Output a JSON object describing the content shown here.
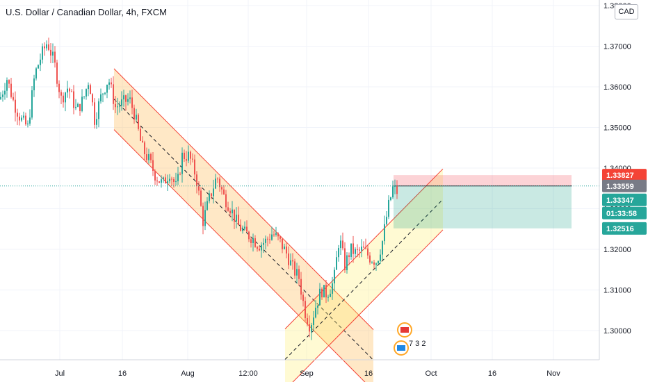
{
  "currency_button": "CAD",
  "colors": {
    "up": "#26a69a",
    "down": "#ef5350",
    "channel_line": "#f44336",
    "channel_fill_orange": "#ffb74d",
    "channel_fill_yellow": "#fff176",
    "last_price": "#26a69a",
    "stop": "#f44336",
    "target": "#26a69a",
    "current_label": "#787b86"
  },
  "chart_data": {
    "type": "candlestick",
    "title": "U.S. Dollar / Canadian Dollar, 4h, FXCM",
    "xlabel": "",
    "ylabel": "",
    "ylim": [
      1.2925,
      1.3805
    ],
    "y_ticks": [
      "1.30000",
      "1.31000",
      "1.32000",
      "1.33000",
      "1.34000",
      "1.35000",
      "1.36000",
      "1.37000",
      "1.38000"
    ],
    "x_ticks": [
      "Jul",
      "16",
      "Aug",
      "12:00",
      "Sep",
      "16",
      "Oct",
      "16",
      "Nov"
    ],
    "price_labels": [
      {
        "name": "stop-loss",
        "value": "1.33827"
      },
      {
        "name": "current-price",
        "value": "1.33559"
      },
      {
        "name": "last-close",
        "value": "1.33347"
      },
      {
        "name": "bar-countdown",
        "value": "01:33:58"
      },
      {
        "name": "take-profit",
        "value": "1.32516"
      }
    ],
    "bars_text": "Jul 1.362; Jul 1.358; 16 1.359; Aug 1.338; 12:00 1.325; Sep 1.302; Sep 1.310; 16 1.318; 16 1.334",
    "anchors": [
      [
        0,
        1.357
      ],
      [
        10,
        1.362
      ],
      [
        20,
        1.356
      ],
      [
        30,
        1.352
      ],
      [
        40,
        1.35
      ],
      [
        50,
        1.363
      ],
      [
        60,
        1.368
      ],
      [
        68,
        1.371
      ],
      [
        78,
        1.366
      ],
      [
        88,
        1.357
      ],
      [
        98,
        1.36
      ],
      [
        110,
        1.354
      ],
      [
        120,
        1.357
      ],
      [
        128,
        1.362
      ],
      [
        136,
        1.352
      ],
      [
        146,
        1.358
      ],
      [
        156,
        1.362
      ],
      [
        166,
        1.355
      ],
      [
        176,
        1.356
      ],
      [
        186,
        1.357
      ],
      [
        194,
        1.353
      ],
      [
        204,
        1.345
      ],
      [
        214,
        1.342
      ],
      [
        224,
        1.338
      ],
      [
        234,
        1.336
      ],
      [
        244,
        1.339
      ],
      [
        254,
        1.335
      ],
      [
        262,
        1.343
      ],
      [
        272,
        1.343
      ],
      [
        282,
        1.338
      ],
      [
        292,
        1.327
      ],
      [
        302,
        1.333
      ],
      [
        312,
        1.338
      ],
      [
        322,
        1.333
      ],
      [
        332,
        1.33
      ],
      [
        342,
        1.326
      ],
      [
        352,
        1.324
      ],
      [
        362,
        1.323
      ],
      [
        372,
        1.321
      ],
      [
        382,
        1.322
      ],
      [
        392,
        1.324
      ],
      [
        402,
        1.322
      ],
      [
        412,
        1.319
      ],
      [
        422,
        1.315
      ],
      [
        430,
        1.313
      ],
      [
        438,
        1.305
      ],
      [
        446,
        1.301
      ],
      [
        454,
        1.306
      ],
      [
        462,
        1.31
      ],
      [
        470,
        1.309
      ],
      [
        480,
        1.312
      ],
      [
        488,
        1.323
      ],
      [
        496,
        1.316
      ],
      [
        504,
        1.32
      ],
      [
        512,
        1.319
      ],
      [
        522,
        1.32
      ],
      [
        532,
        1.318
      ],
      [
        542,
        1.317
      ],
      [
        550,
        1.322
      ],
      [
        558,
        1.33
      ],
      [
        565,
        1.335
      ],
      [
        572,
        1.334
      ]
    ],
    "descending_channel": {
      "start": [
        164,
        1.36446
      ],
      "end": [
        537,
        1.30024
      ],
      "width": 0.015
    },
    "ascending_channel": {
      "start": [
        410,
        1.30041
      ],
      "end": [
        637,
        1.3398
      ],
      "width": 0.015
    },
    "position": {
      "x_start": 566,
      "x_end": 822,
      "entry": 1.33559,
      "stop": 1.33827,
      "target": 1.32516
    },
    "current_price": 1.33559,
    "event_icons": [
      {
        "x": 582,
        "y": 475,
        "name": "canada-flag"
      },
      {
        "x": 577,
        "y": 501,
        "name": "us-flag"
      }
    ],
    "event_note": "7 3 2"
  }
}
